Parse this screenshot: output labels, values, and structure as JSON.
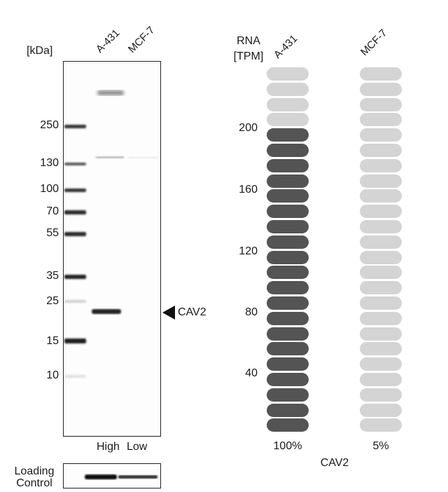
{
  "western_blot": {
    "unit_label": "[kDa]",
    "lanes": [
      "A-431",
      "MCF-7"
    ],
    "markers": [
      "250",
      "130",
      "100",
      "70",
      "55",
      "35",
      "25",
      "15",
      "10"
    ],
    "target_label": "CAV2",
    "lane_expression": [
      "High",
      "Low"
    ],
    "loading_control_label": [
      "Loading",
      "Control"
    ]
  },
  "rna": {
    "axis_title": [
      "RNA",
      "[TPM]"
    ],
    "samples": [
      "A-431",
      "MCF-7"
    ],
    "y_ticks": [
      "200",
      "160",
      "120",
      "80",
      "40"
    ],
    "percentages": [
      "100%",
      "5%"
    ],
    "gene_label": "CAV2",
    "colors": {
      "filled": "#545454",
      "empty": "#d4d4d4"
    }
  },
  "chart_data": {
    "type": "bar",
    "categories": [
      "A-431",
      "MCF-7"
    ],
    "values": [
      100,
      5
    ],
    "ylabel": "RNA [TPM]",
    "y_ticks": [
      40,
      80,
      120,
      160,
      200
    ],
    "units": "percent of max",
    "segments_total": 24,
    "segments_filled": [
      20,
      0
    ]
  }
}
